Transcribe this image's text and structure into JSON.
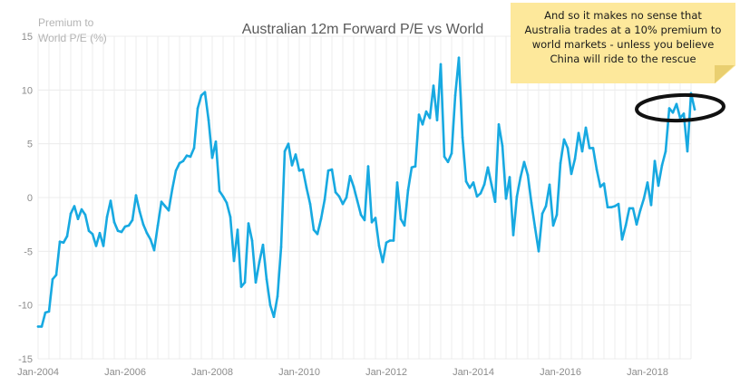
{
  "chart_data": {
    "type": "line",
    "title": "Australian 12m Forward P/E vs World",
    "ylabel": "Premium to World P/E (%)",
    "ylabel_lines": [
      "Premium to",
      "World P/E (%)"
    ],
    "xlabel": "",
    "ylim": [
      -15,
      15
    ],
    "yticks": [
      -15,
      -10,
      -5,
      0,
      5,
      10,
      15
    ],
    "x_start": "Jan-2004",
    "x_end": "Jan-2019",
    "xticks": [
      "Jan-2004",
      "Jan-2006",
      "Jan-2008",
      "Jan-2010",
      "Jan-2012",
      "Jan-2014",
      "Jan-2016",
      "Jan-2018"
    ],
    "grid": true,
    "legend": "none",
    "series": [
      {
        "color": "#17a9e1",
        "points": [
          [
            "2004-01",
            -12.0
          ],
          [
            "2004-02",
            -12.0
          ],
          [
            "2004-03",
            -10.7
          ],
          [
            "2004-04",
            -10.6
          ],
          [
            "2004-05",
            -7.6
          ],
          [
            "2004-06",
            -7.2
          ],
          [
            "2004-07",
            -4.1
          ],
          [
            "2004-08",
            -4.2
          ],
          [
            "2004-09",
            -3.6
          ],
          [
            "2004-10",
            -1.5
          ],
          [
            "2004-11",
            -0.8
          ],
          [
            "2004-12",
            -2.0
          ],
          [
            "2005-01",
            -1.1
          ],
          [
            "2005-02",
            -1.6
          ],
          [
            "2005-03",
            -3.1
          ],
          [
            "2005-04",
            -3.4
          ],
          [
            "2005-05",
            -4.5
          ],
          [
            "2005-06",
            -3.3
          ],
          [
            "2005-07",
            -4.5
          ],
          [
            "2005-08",
            -1.8
          ],
          [
            "2005-09",
            -0.3
          ],
          [
            "2005-10",
            -2.3
          ],
          [
            "2005-11",
            -3.1
          ],
          [
            "2005-12",
            -3.2
          ],
          [
            "2006-01",
            -2.7
          ],
          [
            "2006-02",
            -2.6
          ],
          [
            "2006-03",
            -2.1
          ],
          [
            "2006-04",
            0.2
          ],
          [
            "2006-05",
            -1.3
          ],
          [
            "2006-06",
            -2.5
          ],
          [
            "2006-07",
            -3.3
          ],
          [
            "2006-08",
            -3.9
          ],
          [
            "2006-09",
            -4.9
          ],
          [
            "2006-10",
            -2.6
          ],
          [
            "2006-11",
            -0.4
          ],
          [
            "2006-12",
            -0.8
          ],
          [
            "2007-01",
            -1.2
          ],
          [
            "2007-02",
            0.8
          ],
          [
            "2007-03",
            2.5
          ],
          [
            "2007-04",
            3.2
          ],
          [
            "2007-05",
            3.4
          ],
          [
            "2007-06",
            3.9
          ],
          [
            "2007-07",
            3.8
          ],
          [
            "2007-08",
            4.6
          ],
          [
            "2007-09",
            8.3
          ],
          [
            "2007-10",
            9.5
          ],
          [
            "2007-11",
            9.8
          ],
          [
            "2007-12",
            7.2
          ],
          [
            "2008-01",
            3.7
          ],
          [
            "2008-02",
            5.2
          ],
          [
            "2008-03",
            0.6
          ],
          [
            "2008-04",
            0.1
          ],
          [
            "2008-05",
            -0.5
          ],
          [
            "2008-06",
            -1.8
          ],
          [
            "2008-07",
            -5.9
          ],
          [
            "2008-08",
            -3.0
          ],
          [
            "2008-09",
            -8.3
          ],
          [
            "2008-10",
            -7.9
          ],
          [
            "2008-11",
            -2.4
          ],
          [
            "2008-12",
            -4.0
          ],
          [
            "2009-01",
            -7.9
          ],
          [
            "2009-02",
            -6.0
          ],
          [
            "2009-03",
            -4.4
          ],
          [
            "2009-04",
            -7.6
          ],
          [
            "2009-05",
            -10.0
          ],
          [
            "2009-06",
            -11.1
          ],
          [
            "2009-07",
            -9.2
          ],
          [
            "2009-08",
            -4.6
          ],
          [
            "2009-09",
            4.3
          ],
          [
            "2009-10",
            5.0
          ],
          [
            "2009-11",
            3.0
          ],
          [
            "2009-12",
            4.0
          ],
          [
            "2010-01",
            2.5
          ],
          [
            "2010-02",
            2.6
          ],
          [
            "2010-03",
            0.9
          ],
          [
            "2010-04",
            -0.6
          ],
          [
            "2010-05",
            -3.0
          ],
          [
            "2010-06",
            -3.4
          ],
          [
            "2010-07",
            -2.0
          ],
          [
            "2010-08",
            -0.2
          ],
          [
            "2010-09",
            2.5
          ],
          [
            "2010-10",
            2.6
          ],
          [
            "2010-11",
            0.5
          ],
          [
            "2010-12",
            0.1
          ],
          [
            "2011-01",
            -0.6
          ],
          [
            "2011-02",
            0.0
          ],
          [
            "2011-03",
            2.0
          ],
          [
            "2011-04",
            1.0
          ],
          [
            "2011-05",
            -0.3
          ],
          [
            "2011-06",
            -1.6
          ],
          [
            "2011-07",
            -2.1
          ],
          [
            "2011-08",
            2.9
          ],
          [
            "2011-09",
            -2.3
          ],
          [
            "2011-10",
            -1.9
          ],
          [
            "2011-11",
            -4.5
          ],
          [
            "2011-12",
            -6.0
          ],
          [
            "2012-01",
            -4.2
          ],
          [
            "2012-02",
            -4.0
          ],
          [
            "2012-03",
            -4.0
          ],
          [
            "2012-04",
            1.4
          ],
          [
            "2012-05",
            -2.0
          ],
          [
            "2012-06",
            -2.6
          ],
          [
            "2012-07",
            0.7
          ],
          [
            "2012-08",
            2.8
          ],
          [
            "2012-09",
            2.9
          ],
          [
            "2012-10",
            7.7
          ],
          [
            "2012-11",
            6.8
          ],
          [
            "2012-12",
            8.0
          ],
          [
            "2013-01",
            7.4
          ],
          [
            "2013-02",
            10.4
          ],
          [
            "2013-03",
            7.2
          ],
          [
            "2013-04",
            12.4
          ],
          [
            "2013-05",
            3.8
          ],
          [
            "2013-06",
            3.3
          ],
          [
            "2013-07",
            4.1
          ],
          [
            "2013-08",
            9.5
          ],
          [
            "2013-09",
            13.0
          ],
          [
            "2013-10",
            5.6
          ],
          [
            "2013-11",
            1.5
          ],
          [
            "2013-12",
            0.9
          ],
          [
            "2014-01",
            1.4
          ],
          [
            "2014-02",
            0.1
          ],
          [
            "2014-03",
            0.4
          ],
          [
            "2014-04",
            1.2
          ],
          [
            "2014-05",
            2.8
          ],
          [
            "2014-06",
            1.2
          ],
          [
            "2014-07",
            -0.4
          ],
          [
            "2014-08",
            6.8
          ],
          [
            "2014-09",
            4.8
          ],
          [
            "2014-10",
            -0.1
          ],
          [
            "2014-11",
            1.9
          ],
          [
            "2014-12",
            -3.5
          ],
          [
            "2015-01",
            0.1
          ],
          [
            "2015-02",
            1.9
          ],
          [
            "2015-03",
            3.3
          ],
          [
            "2015-04",
            2.1
          ],
          [
            "2015-05",
            -0.5
          ],
          [
            "2015-06",
            -2.8
          ],
          [
            "2015-07",
            -5.0
          ],
          [
            "2015-08",
            -1.5
          ],
          [
            "2015-09",
            -0.8
          ],
          [
            "2015-10",
            1.2
          ],
          [
            "2015-11",
            -2.6
          ],
          [
            "2015-12",
            -1.6
          ],
          [
            "2016-01",
            3.2
          ],
          [
            "2016-02",
            5.4
          ],
          [
            "2016-03",
            4.6
          ],
          [
            "2016-04",
            2.2
          ],
          [
            "2016-05",
            3.6
          ],
          [
            "2016-06",
            6.0
          ],
          [
            "2016-07",
            4.3
          ],
          [
            "2016-08",
            6.5
          ],
          [
            "2016-09",
            4.6
          ],
          [
            "2016-10",
            4.6
          ],
          [
            "2016-11",
            2.6
          ],
          [
            "2016-12",
            1.0
          ],
          [
            "2017-01",
            1.3
          ],
          [
            "2017-02",
            -0.9
          ],
          [
            "2017-03",
            -0.9
          ],
          [
            "2017-04",
            -0.8
          ],
          [
            "2017-05",
            -0.6
          ],
          [
            "2017-06",
            -3.9
          ],
          [
            "2017-07",
            -2.6
          ],
          [
            "2017-08",
            -1.0
          ],
          [
            "2017-09",
            -1.0
          ],
          [
            "2017-10",
            -2.5
          ],
          [
            "2017-11",
            -1.2
          ],
          [
            "2017-12",
            -0.1
          ],
          [
            "2018-01",
            1.4
          ],
          [
            "2018-02",
            -0.7
          ],
          [
            "2018-03",
            3.4
          ],
          [
            "2018-04",
            1.1
          ],
          [
            "2018-05",
            3.0
          ],
          [
            "2018-06",
            4.3
          ],
          [
            "2018-07",
            8.3
          ],
          [
            "2018-08",
            7.9
          ],
          [
            "2018-09",
            8.7
          ],
          [
            "2018-10",
            7.4
          ],
          [
            "2018-11",
            7.8
          ],
          [
            "2018-12",
            4.3
          ],
          [
            "2019-01",
            9.7
          ],
          [
            "2019-02",
            8.2
          ]
        ]
      }
    ],
    "annotations": [
      {
        "text": "And so it makes no sense that Australia trades at a 10% premium to world markets - unless you believe China will ride to the rescue",
        "position": "top-right"
      }
    ]
  },
  "colors": {
    "line": "#17a9e1",
    "grid": "#ececec",
    "note_background": "#fde89b",
    "circle": "#111111"
  }
}
